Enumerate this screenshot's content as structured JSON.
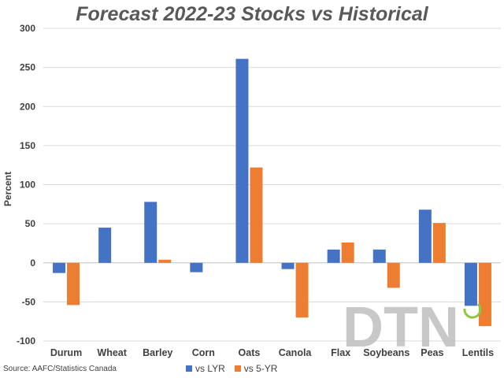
{
  "chart_data": {
    "type": "bar",
    "title": "Forecast 2022-23 Stocks vs Historical",
    "ylabel": "Percent",
    "xlabel": "",
    "ylim": [
      -100,
      300
    ],
    "yticks": [
      -100,
      -50,
      0,
      50,
      100,
      150,
      200,
      250,
      300
    ],
    "grid": true,
    "legend_position": "bottom",
    "categories": [
      "Durum",
      "Wheat",
      "Barley",
      "Corn",
      "Oats",
      "Canola",
      "Flax",
      "Soybeans",
      "Peas",
      "Lentils"
    ],
    "series": [
      {
        "name": "vs LYR",
        "color": "#4472C4",
        "values": [
          -13,
          45,
          78,
          -12,
          261,
          -8,
          17,
          17,
          68,
          -55
        ]
      },
      {
        "name": "vs 5-YR",
        "color": "#ED7D31",
        "values": [
          -54,
          0,
          4,
          0,
          122,
          -70,
          26,
          -32,
          51,
          -81
        ]
      }
    ]
  },
  "source": "Source: AAFC/Statistics Canada",
  "watermark": "DTN",
  "colors": {
    "text": "#404040",
    "grid": "#D9D9D9",
    "watermark": "#BFBFBF",
    "accent": "#8DC63F"
  }
}
